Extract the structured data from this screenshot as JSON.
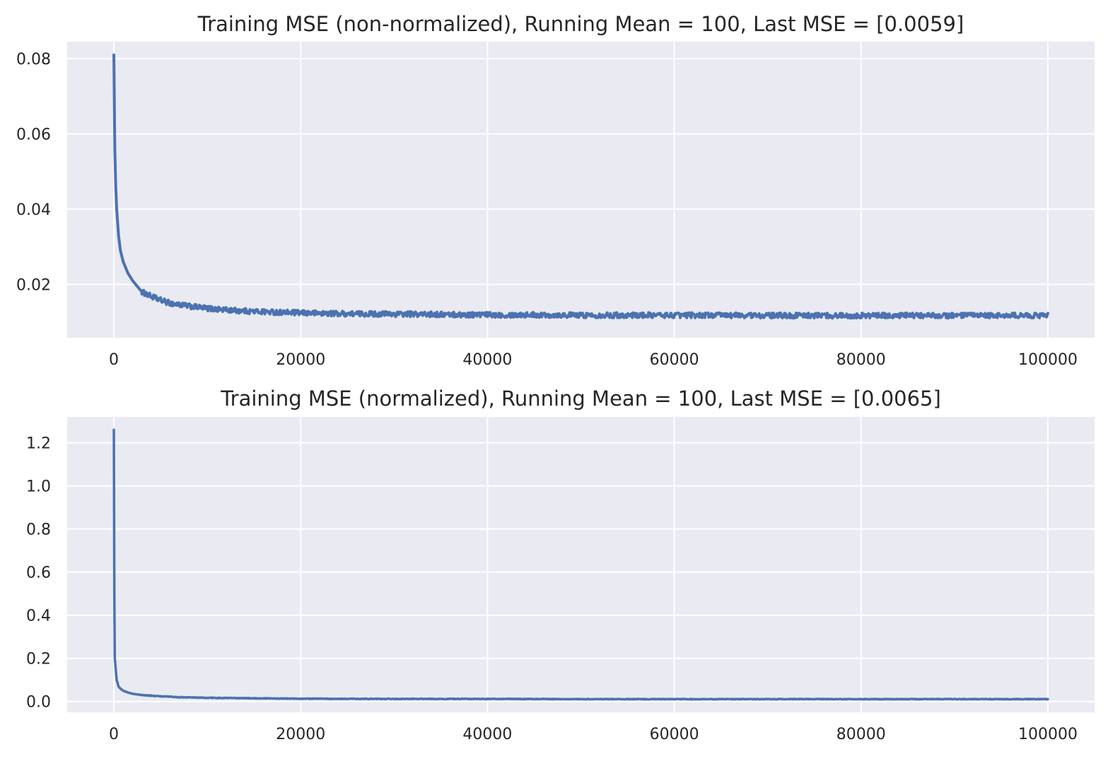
{
  "chart_data": [
    {
      "type": "line",
      "title": "Training MSE (non-normalized), Running Mean = 100, Last MSE = [0.0059]",
      "xlabel": "",
      "ylabel": "",
      "xlim": [
        -5000,
        105000
      ],
      "ylim": [
        0.0058,
        0.0845
      ],
      "xticks": [
        0,
        20000,
        40000,
        60000,
        80000,
        100000
      ],
      "xtick_labels": [
        "0",
        "20000",
        "40000",
        "60000",
        "80000",
        "100000"
      ],
      "yticks": [
        0.02,
        0.04,
        0.06,
        0.08
      ],
      "ytick_labels": [
        "0.02",
        "0.04",
        "0.06",
        "0.08"
      ],
      "grid": true,
      "background": "#eaeaf2",
      "series": [
        {
          "color": "#4c72b0",
          "x": [
            0,
            100,
            200,
            300,
            500,
            700,
            1000,
            1500,
            2000,
            3000,
            4000,
            5000,
            6000,
            8000,
            10000,
            12000,
            15000,
            20000,
            25000,
            30000,
            35000,
            40000,
            45000,
            50000,
            55000,
            60000,
            65000,
            70000,
            75000,
            80000,
            85000,
            90000,
            95000,
            100000
          ],
          "y": [
            0.081,
            0.056,
            0.046,
            0.04,
            0.033,
            0.029,
            0.026,
            0.023,
            0.021,
            0.018,
            0.0168,
            0.0158,
            0.015,
            0.0142,
            0.0136,
            0.0132,
            0.0128,
            0.0124,
            0.0122,
            0.0121,
            0.012,
            0.0119,
            0.0119,
            0.0118,
            0.0118,
            0.0118,
            0.0118,
            0.0117,
            0.0117,
            0.0117,
            0.0117,
            0.0117,
            0.0117,
            0.0117
          ]
        }
      ]
    },
    {
      "type": "line",
      "title": "Training MSE (normalized), Running Mean = 100, Last MSE = [0.0065]",
      "xlabel": "",
      "ylabel": "",
      "xlim": [
        -5000,
        105000
      ],
      "ylim": [
        -0.05,
        1.32
      ],
      "xticks": [
        0,
        20000,
        40000,
        60000,
        80000,
        100000
      ],
      "xtick_labels": [
        "0",
        "20000",
        "40000",
        "60000",
        "80000",
        "100000"
      ],
      "yticks": [
        0.0,
        0.2,
        0.4,
        0.6,
        0.8,
        1.0,
        1.2
      ],
      "ytick_labels": [
        "0.0",
        "0.2",
        "0.4",
        "0.6",
        "0.8",
        "1.0",
        "1.2"
      ],
      "grid": true,
      "background": "#eaeaf2",
      "series": [
        {
          "color": "#4c72b0",
          "x": [
            0,
            50,
            100,
            200,
            300,
            500,
            700,
            1000,
            1500,
            2000,
            3000,
            5000,
            7000,
            10000,
            15000,
            20000,
            30000,
            40000,
            50000,
            60000,
            70000,
            80000,
            90000,
            100000
          ],
          "y": [
            1.26,
            0.5,
            0.2,
            0.15,
            0.1,
            0.07,
            0.06,
            0.05,
            0.042,
            0.036,
            0.03,
            0.024,
            0.02,
            0.017,
            0.015,
            0.013,
            0.012,
            0.012,
            0.011,
            0.011,
            0.011,
            0.011,
            0.011,
            0.011
          ]
        }
      ]
    }
  ]
}
